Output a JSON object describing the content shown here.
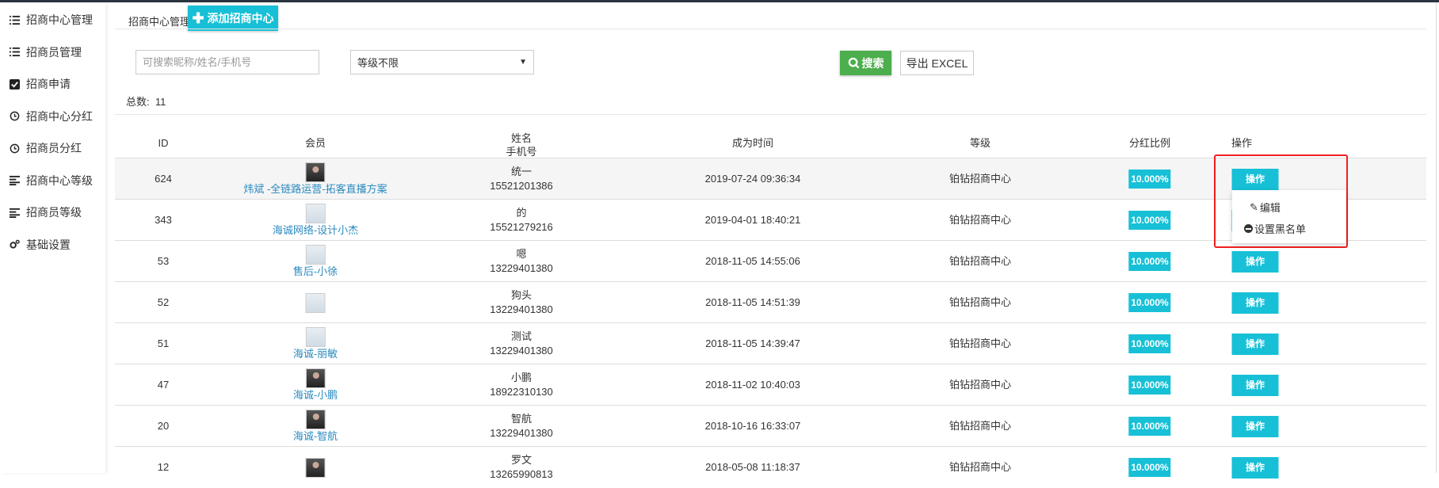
{
  "sidebar": {
    "items": [
      {
        "label": "招商中心管理",
        "icon": "list-icon"
      },
      {
        "label": "招商员管理",
        "icon": "list-icon"
      },
      {
        "label": "招商申请",
        "icon": "checkbox-icon"
      },
      {
        "label": "招商中心分红",
        "icon": "clock-icon"
      },
      {
        "label": "招商员分红",
        "icon": "clock-icon"
      },
      {
        "label": "招商中心等级",
        "icon": "align-left-icon"
      },
      {
        "label": "招商员等级",
        "icon": "align-left-icon"
      },
      {
        "label": "基础设置",
        "icon": "gears-icon"
      }
    ]
  },
  "header": {
    "breadcrumb": "招商中心管理",
    "add_label": "添加招商中心"
  },
  "filters": {
    "search_placeholder": "可搜索昵称/姓名/手机号",
    "level_value": "等级不限",
    "search_label": "搜索",
    "export_label": "导出 EXCEL"
  },
  "summary": {
    "total_label": "总数:",
    "total": "11"
  },
  "table": {
    "headers": {
      "id": "ID",
      "member": "会员",
      "name": "姓名",
      "phone": "手机号",
      "time": "成为时间",
      "level": "等级",
      "ratio": "分红比例",
      "ops": "操作"
    },
    "rows": [
      {
        "id": "624",
        "member": "炜斌 -全链路运营-拓客直播方案",
        "name": "统一",
        "phone": "15521201386",
        "time": "2019-07-24 09:36:34",
        "level": "铂钻招商中心",
        "ratio": "10.000%",
        "op": "操作",
        "avatar": "photo"
      },
      {
        "id": "343",
        "member": "海诚网络-设计小杰",
        "name": "的",
        "phone": "15521279216",
        "time": "2019-04-01 18:40:21",
        "level": "铂钻招商中心",
        "ratio": "10.000%",
        "op": "操作",
        "avatar": "placeholder"
      },
      {
        "id": "53",
        "member": "售后-小徐",
        "name": "嗯",
        "phone": "13229401380",
        "time": "2018-11-05 14:55:06",
        "level": "铂钻招商中心",
        "ratio": "10.000%",
        "op": "操作",
        "avatar": "placeholder"
      },
      {
        "id": "52",
        "member": "",
        "name": "狗头",
        "phone": "13229401380",
        "time": "2018-11-05 14:51:39",
        "level": "铂钻招商中心",
        "ratio": "10.000%",
        "op": "操作",
        "avatar": "placeholder"
      },
      {
        "id": "51",
        "member": "海诚-丽敏",
        "name": "测试",
        "phone": "13229401380",
        "time": "2018-11-05 14:39:47",
        "level": "铂钻招商中心",
        "ratio": "10.000%",
        "op": "操作",
        "avatar": "placeholder"
      },
      {
        "id": "47",
        "member": "海诚-小鹏",
        "name": "小鹏",
        "phone": "18922310130",
        "time": "2018-11-02 10:40:03",
        "level": "铂钻招商中心",
        "ratio": "10.000%",
        "op": "操作",
        "avatar": "photo"
      },
      {
        "id": "20",
        "member": "海诚-智航",
        "name": "智航",
        "phone": "13229401380",
        "time": "2018-10-16 16:33:07",
        "level": "铂钻招商中心",
        "ratio": "10.000%",
        "op": "操作",
        "avatar": "photo"
      },
      {
        "id": "12",
        "member": "",
        "name": "罗文",
        "phone": "13265990813",
        "time": "2018-05-08 11:18:37",
        "level": "铂钻招商中心",
        "ratio": "10.000%",
        "op": "操作",
        "avatar": "photo"
      }
    ]
  },
  "dropdown": {
    "items": [
      {
        "label": "编辑",
        "icon": "pencil-icon"
      },
      {
        "label": "设置黑名单",
        "icon": "minus-circle-icon"
      }
    ]
  },
  "colors": {
    "accent": "#17c0d6",
    "search": "#4cae4c",
    "highlight": "#f01f1f",
    "link": "#2a8ac0"
  }
}
